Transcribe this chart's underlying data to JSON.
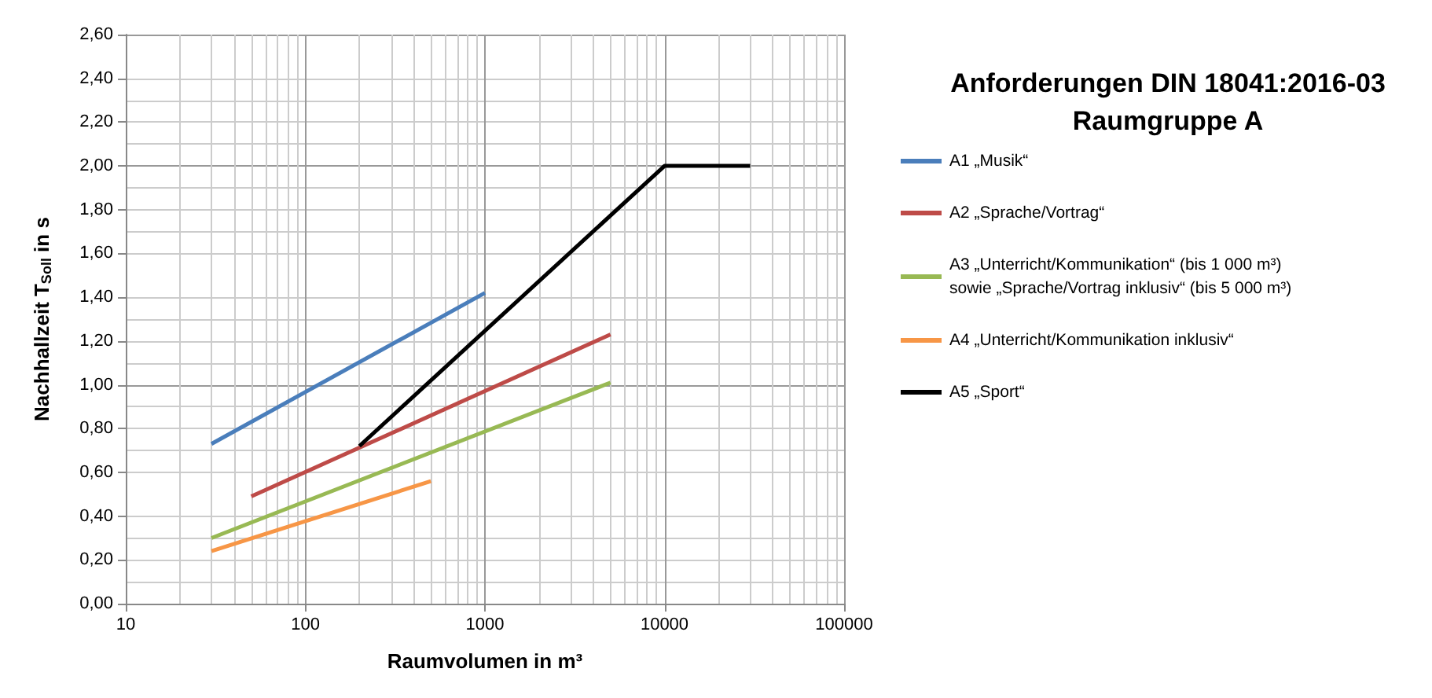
{
  "chart_data": {
    "type": "line",
    "title": "Anforderungen DIN 18041:2016-03\nRaumgruppe A",
    "xlabel": "Raumvolumen in m³",
    "ylabel": "Nachhallzeit T$_{Soll}$ in s",
    "log": "x",
    "grid": true,
    "legend": "right",
    "marker": "none",
    "line_style": "solid",
    "xlim": [
      10,
      100000
    ],
    "xticks": [
      10,
      100,
      1000,
      10000,
      100000
    ],
    "ylim": [
      0,
      2.6
    ],
    "yticks": [
      {
        "value": 0,
        "label": "0,00"
      },
      {
        "value": 0.2,
        "label": "0,20"
      },
      {
        "value": 0.4,
        "label": "0,40"
      },
      {
        "value": 0.6,
        "label": "0,60"
      },
      {
        "value": 0.8,
        "label": "0,80"
      },
      {
        "value": 1,
        "label": "1,00"
      },
      {
        "value": 1.2,
        "label": "1,20"
      },
      {
        "value": 1.4,
        "label": "1,40"
      },
      {
        "value": 1.6,
        "label": "1,60"
      },
      {
        "value": 1.8,
        "label": "1,80"
      },
      {
        "value": 2,
        "label": "2,00"
      },
      {
        "value": 2.2,
        "label": "2,20"
      },
      {
        "value": 2.4,
        "label": "2,40"
      },
      {
        "value": 2.6,
        "label": "2,60"
      }
    ],
    "series": [
      {
        "name": "A1 „Musik“",
        "color": "#4a7ebb",
        "x": [
          30,
          1000
        ],
        "values": [
          0.73,
          1.42
        ]
      },
      {
        "name": "A2 „Sprache/Vortrag“",
        "color": "#be4b48",
        "x": [
          50,
          5000
        ],
        "values": [
          0.49,
          1.23
        ]
      },
      {
        "name": "A3 „Unterricht/Kommunikation“ (bis 1 000 m³)\nsowie „Sprache/Vortrag inklusiv“ (bis 5 000 m³)",
        "color": "#98b954",
        "x": [
          30,
          5000
        ],
        "values": [
          0.3,
          1.01
        ]
      },
      {
        "name": "A4 „Unterricht/Kommunikation inklusiv“",
        "color": "#f79646",
        "x": [
          30,
          500
        ],
        "values": [
          0.24,
          0.56
        ]
      },
      {
        "name": "A5 „Sport“",
        "color": "#000000",
        "x": [
          200,
          10000,
          30000
        ],
        "values": [
          0.72,
          2.0,
          2.0
        ]
      }
    ]
  }
}
